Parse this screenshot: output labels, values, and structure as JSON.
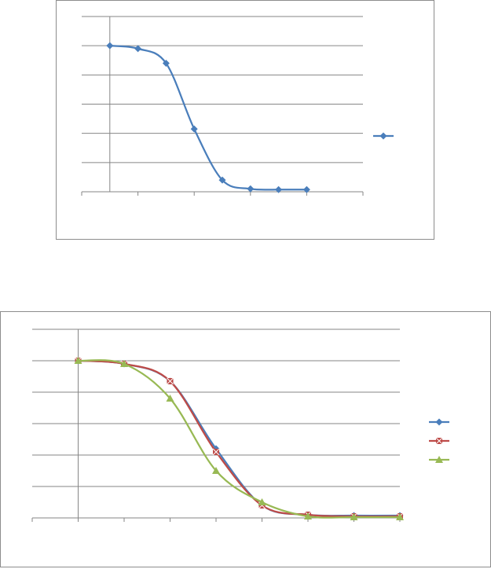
{
  "colors": {
    "blue": "#4a7ebb",
    "red": "#be4b48",
    "green": "#98b954",
    "grid": "#868686",
    "axis": "#868686"
  },
  "chart_data": [
    {
      "type": "line",
      "x": [
        0,
        1,
        2,
        3,
        4,
        5,
        6,
        7
      ],
      "series": [
        {
          "values": [
            1.0,
            0.98,
            0.88,
            0.43,
            0.08,
            0.02,
            0.015,
            0.015
          ],
          "color": "#4a7ebb",
          "marker": "diamond"
        }
      ],
      "xlim": [
        -1,
        9
      ],
      "ylim": [
        0,
        1.2
      ],
      "grid": true,
      "legend": "right"
    },
    {
      "type": "line",
      "x": [
        0,
        1,
        2,
        3,
        4,
        5,
        6,
        7
      ],
      "series": [
        {
          "values": [
            1.0,
            0.98,
            0.87,
            0.44,
            0.08,
            0.02,
            0.015,
            0.015
          ],
          "color": "#4a7ebb",
          "marker": "diamond"
        },
        {
          "values": [
            1.0,
            0.98,
            0.87,
            0.42,
            0.08,
            0.02,
            0.01,
            0.01
          ],
          "color": "#be4b48",
          "marker": "square"
        },
        {
          "values": [
            1.0,
            0.98,
            0.76,
            0.3,
            0.1,
            0.01,
            0.005,
            0.005
          ],
          "color": "#98b954",
          "marker": "triangle"
        }
      ],
      "xlim": [
        -1,
        7
      ],
      "ylim": [
        0,
        1.2
      ],
      "grid": true,
      "legend": "right"
    }
  ]
}
